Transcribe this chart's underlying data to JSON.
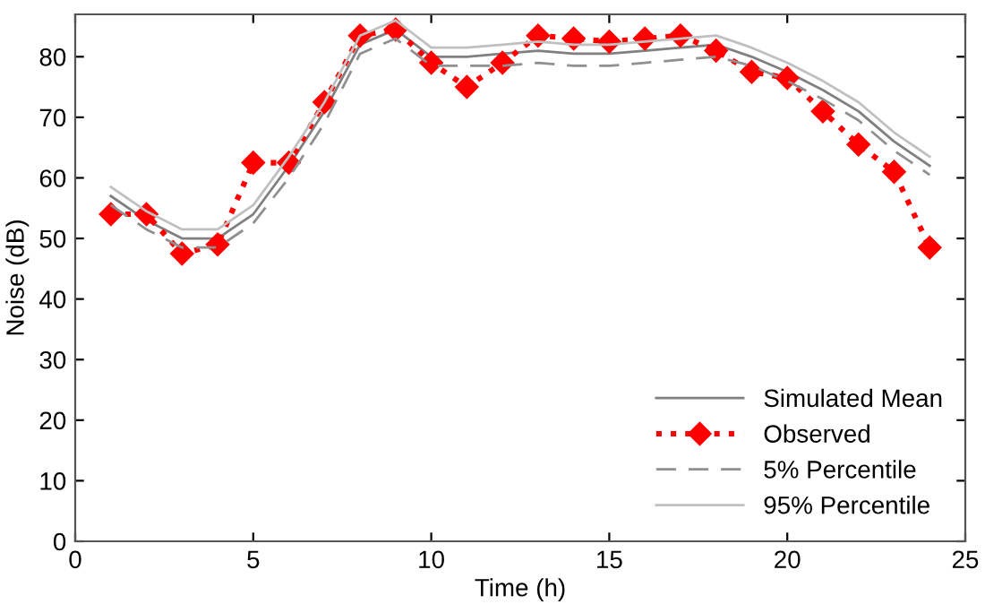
{
  "chart_data": {
    "type": "line",
    "xlabel": "Time (h)",
    "ylabel": "Noise (dB)",
    "x": [
      1,
      2,
      3,
      4,
      5,
      6,
      7,
      8,
      9,
      10,
      11,
      12,
      13,
      14,
      15,
      16,
      17,
      18,
      19,
      20,
      21,
      22,
      23,
      24
    ],
    "series": [
      {
        "name": "Simulated Mean",
        "color": "#808080",
        "line_style": "solid",
        "marker": "none",
        "values": [
          57,
          53,
          50,
          50,
          54,
          62,
          71,
          82,
          84.5,
          80,
          80,
          80.5,
          81,
          80.5,
          80.5,
          81,
          81.5,
          82,
          80,
          77.5,
          74.5,
          71,
          66,
          62
        ]
      },
      {
        "name": "Observed",
        "color": "#ff0000",
        "line_style": "dotted",
        "marker": "diamond",
        "values": [
          54,
          54,
          47.5,
          49,
          62.5,
          62.5,
          72.5,
          83.5,
          84.5,
          79,
          75,
          79,
          83.5,
          83,
          82.5,
          83,
          83.5,
          81,
          77.5,
          76.5,
          71,
          65.5,
          61,
          48.5
        ]
      },
      {
        "name": "5% Percentile",
        "color": "#909090",
        "line_style": "dashed",
        "marker": "none",
        "values": [
          55.5,
          51.5,
          48.5,
          48.5,
          52.5,
          60,
          69,
          80.5,
          83,
          78.5,
          78.5,
          78.5,
          79,
          78.5,
          78.5,
          79,
          79.5,
          80,
          78.5,
          76,
          73,
          69.5,
          64.5,
          60.5
        ]
      },
      {
        "name": "95% Percentile",
        "color": "#c0c0c0",
        "line_style": "solid",
        "marker": "none",
        "values": [
          58.5,
          54.5,
          51.5,
          51.5,
          55.5,
          63.5,
          72.5,
          83.5,
          86,
          81.5,
          81.5,
          82,
          82.5,
          82,
          82,
          82.5,
          83,
          83.5,
          81.5,
          79,
          76,
          72.5,
          67.5,
          63.5
        ]
      }
    ],
    "xlim": [
      0,
      25
    ],
    "xticks": [
      0,
      5,
      10,
      15,
      20,
      25
    ],
    "ylim": [
      0,
      87
    ],
    "yticks": [
      0,
      10,
      20,
      30,
      40,
      50,
      60,
      70,
      80
    ],
    "grid": false,
    "legend": "bottom right"
  }
}
